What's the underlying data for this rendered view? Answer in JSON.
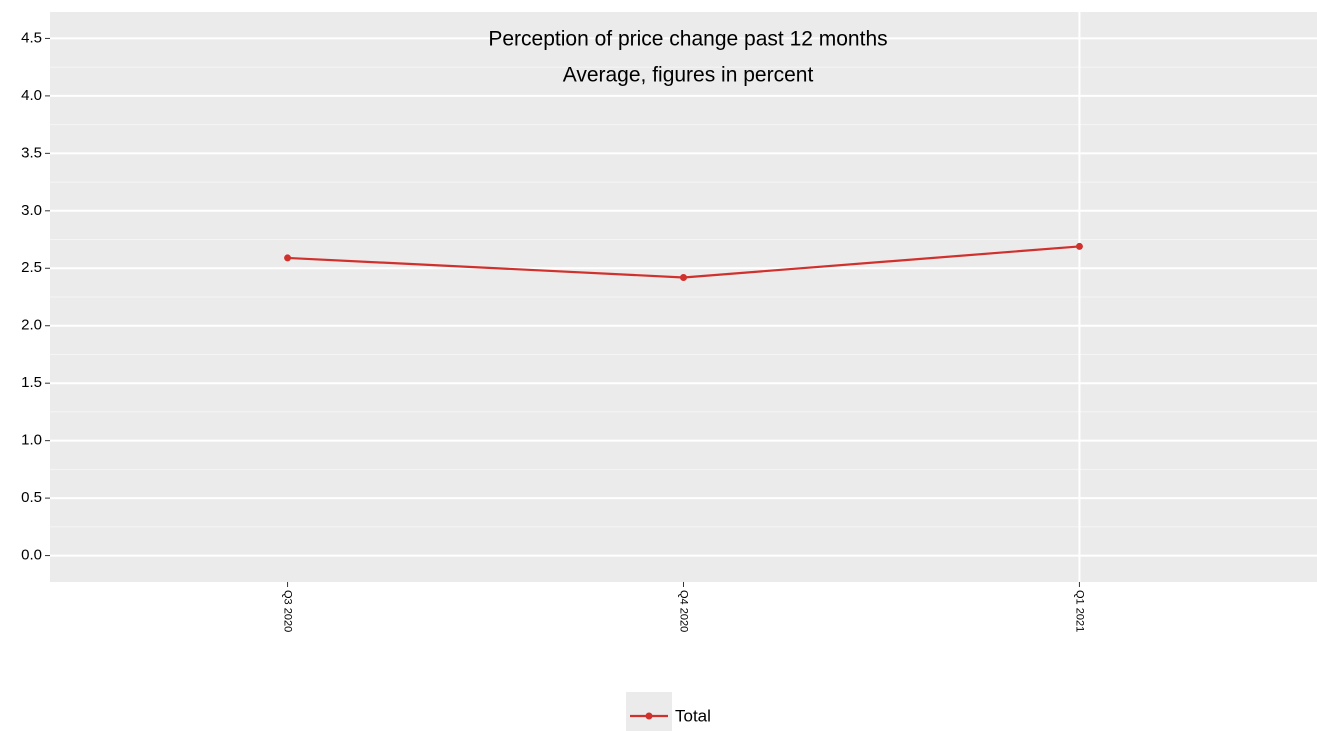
{
  "chart_data": {
    "type": "line",
    "title": "Perception of price change past 12 months",
    "subtitle": "Average, figures in percent",
    "categories": [
      "Q3 2020",
      "Q4 2020",
      "Q1 2021"
    ],
    "series": [
      {
        "name": "Total",
        "color": "#d0312d",
        "values": [
          2.59,
          2.42,
          2.69
        ]
      }
    ],
    "ylim": [
      -0.23,
      4.73
    ],
    "yticks": [
      {
        "value": 0,
        "label": "0.0"
      },
      0.5,
      {
        "value": 1,
        "label": "1.0"
      },
      1.5,
      {
        "value": 2,
        "label": "2.0"
      },
      2.5,
      {
        "value": 3,
        "label": "3.0"
      },
      3.5,
      {
        "value": 4,
        "label": "4.0"
      },
      4.5
    ],
    "grid": true,
    "legend": "bottom"
  }
}
